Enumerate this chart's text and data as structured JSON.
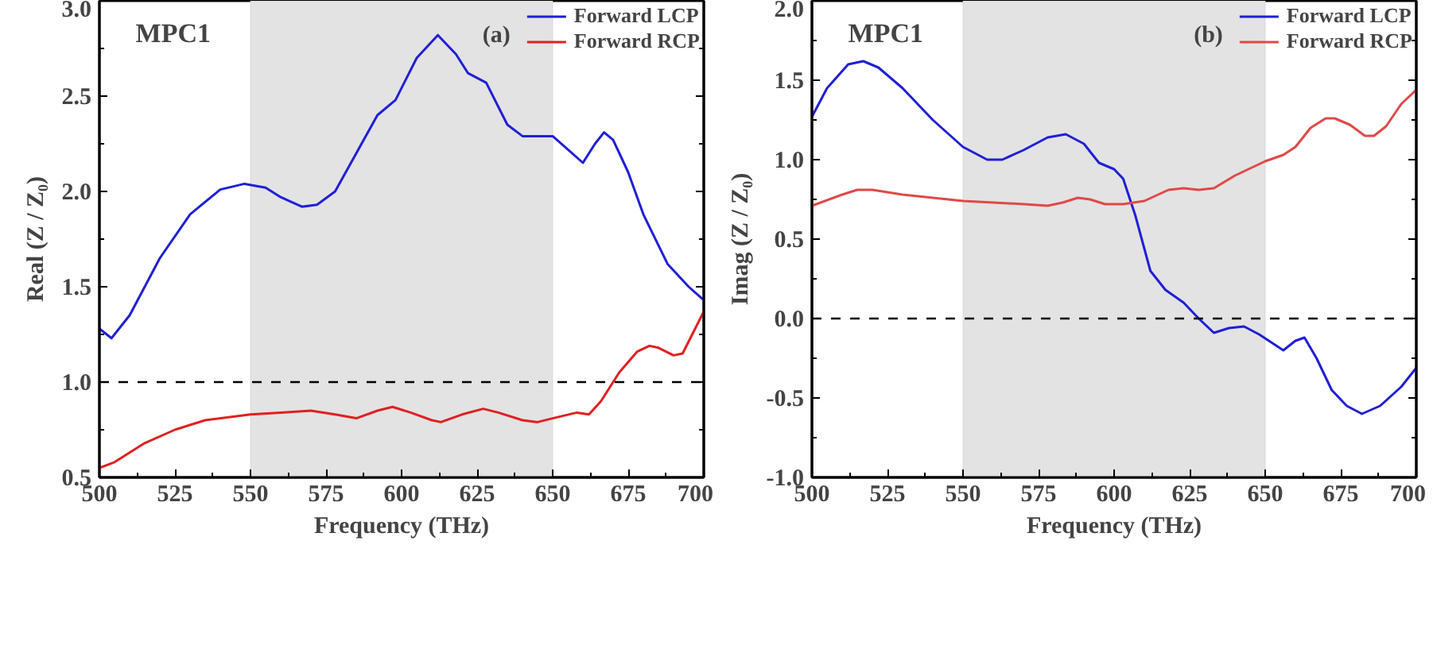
{
  "chart_data": [
    {
      "type": "line",
      "xlabel": "Frequency (THz)",
      "ylabel": "Real (Z / Z₀)",
      "annotations": [
        "MPC1",
        "(a)"
      ],
      "xlim": [
        500,
        700
      ],
      "xticks": [
        500,
        525,
        550,
        575,
        600,
        625,
        650,
        675,
        700
      ],
      "ylim": [
        0.5,
        3.0
      ],
      "yticks": [
        {
          "value": 0.5,
          "label": "0.5"
        },
        {
          "value": 1.0,
          "label": "1.0"
        },
        {
          "value": 1.5,
          "label": "1.5"
        },
        {
          "value": 2.0,
          "label": "2.0"
        },
        {
          "value": 2.5,
          "label": "2.5"
        },
        {
          "value": 3.0,
          "label": "3.0"
        }
      ],
      "grid": false,
      "legend": "top right",
      "line_style": "solid",
      "bands": [
        {
          "axis": "x",
          "from": 550,
          "to": 650,
          "color": "#e3e3e3"
        }
      ],
      "ref_lines": [
        {
          "axis": "y",
          "value": 1.0,
          "color": "#000000",
          "line_style": "dashed"
        }
      ],
      "series": [
        {
          "name": "Forward LCP",
          "color": "#1f1fd6",
          "x": [
            500,
            504,
            510,
            520,
            530,
            540,
            548,
            555,
            560,
            567,
            572,
            578,
            585,
            592,
            598,
            605,
            612,
            618,
            622,
            628,
            635,
            640,
            645,
            650,
            655,
            660,
            664,
            667,
            670,
            675,
            680,
            688,
            695,
            700
          ],
          "values": [
            1.28,
            1.23,
            1.35,
            1.65,
            1.88,
            2.01,
            2.04,
            2.02,
            1.97,
            1.92,
            1.93,
            2.0,
            2.2,
            2.4,
            2.48,
            2.7,
            2.82,
            2.72,
            2.62,
            2.57,
            2.35,
            2.29,
            2.29,
            2.29,
            2.22,
            2.15,
            2.25,
            2.31,
            2.27,
            2.1,
            1.88,
            1.62,
            1.5,
            1.43
          ]
        },
        {
          "name": "Forward RCP",
          "color": "#e02020",
          "x": [
            500,
            505,
            515,
            525,
            535,
            550,
            560,
            570,
            578,
            585,
            592,
            597,
            603,
            610,
            613,
            620,
            627,
            632,
            640,
            645,
            650,
            658,
            662,
            666,
            672,
            678,
            682,
            685,
            690,
            693,
            700
          ],
          "values": [
            0.55,
            0.58,
            0.68,
            0.75,
            0.8,
            0.83,
            0.84,
            0.85,
            0.83,
            0.81,
            0.85,
            0.87,
            0.84,
            0.8,
            0.79,
            0.83,
            0.86,
            0.84,
            0.8,
            0.79,
            0.81,
            0.84,
            0.83,
            0.9,
            1.05,
            1.16,
            1.19,
            1.18,
            1.14,
            1.15,
            1.37
          ]
        }
      ]
    },
    {
      "type": "line",
      "xlabel": "Frequency (THz)",
      "ylabel": "Imag (Z / Z₀)",
      "annotations": [
        "MPC1",
        "(b)"
      ],
      "xlim": [
        500,
        700
      ],
      "xticks": [
        500,
        525,
        550,
        575,
        600,
        625,
        650,
        675,
        700
      ],
      "ylim": [
        -1.0,
        2.0
      ],
      "yticks": [
        {
          "value": -1.0,
          "label": "-1.0"
        },
        {
          "value": -0.5,
          "label": "-0.5"
        },
        {
          "value": 0.0,
          "label": "0.0"
        },
        {
          "value": 0.5,
          "label": "0.5"
        },
        {
          "value": 1.0,
          "label": "1.0"
        },
        {
          "value": 1.5,
          "label": "1.5"
        },
        {
          "value": 2.0,
          "label": "2.0"
        }
      ],
      "grid": false,
      "legend": "top right",
      "line_style": "solid",
      "bands": [
        {
          "axis": "x",
          "from": 550,
          "to": 650,
          "color": "#e3e3e3"
        }
      ],
      "ref_lines": [
        {
          "axis": "y",
          "value": 0.0,
          "color": "#000000",
          "line_style": "dashed"
        }
      ],
      "series": [
        {
          "name": "Forward LCP",
          "color": "#1f1fd6",
          "x": [
            500,
            505,
            512,
            517,
            522,
            530,
            540,
            550,
            558,
            563,
            570,
            578,
            584,
            590,
            595,
            600,
            603,
            607,
            612,
            617,
            623,
            628,
            633,
            638,
            643,
            648,
            652,
            656,
            660,
            663,
            667,
            672,
            677,
            682,
            688,
            695,
            700
          ],
          "values": [
            1.27,
            1.45,
            1.6,
            1.62,
            1.58,
            1.45,
            1.25,
            1.08,
            1.0,
            1.0,
            1.06,
            1.14,
            1.16,
            1.1,
            0.98,
            0.94,
            0.88,
            0.65,
            0.3,
            0.18,
            0.1,
            0.0,
            -0.09,
            -0.06,
            -0.05,
            -0.1,
            -0.15,
            -0.2,
            -0.14,
            -0.12,
            -0.25,
            -0.45,
            -0.55,
            -0.6,
            -0.55,
            -0.43,
            -0.31
          ]
        },
        {
          "name": "Forward RCP",
          "color": "#e04848",
          "x": [
            500,
            510,
            515,
            520,
            530,
            550,
            560,
            570,
            578,
            583,
            588,
            592,
            597,
            603,
            610,
            618,
            623,
            628,
            633,
            640,
            650,
            656,
            660,
            665,
            670,
            673,
            678,
            683,
            686,
            690,
            695,
            700
          ],
          "values": [
            0.71,
            0.78,
            0.81,
            0.81,
            0.78,
            0.74,
            0.73,
            0.72,
            0.71,
            0.73,
            0.76,
            0.75,
            0.72,
            0.72,
            0.74,
            0.81,
            0.82,
            0.81,
            0.82,
            0.9,
            0.99,
            1.03,
            1.08,
            1.2,
            1.26,
            1.26,
            1.22,
            1.15,
            1.15,
            1.21,
            1.35,
            1.44
          ]
        }
      ]
    }
  ]
}
